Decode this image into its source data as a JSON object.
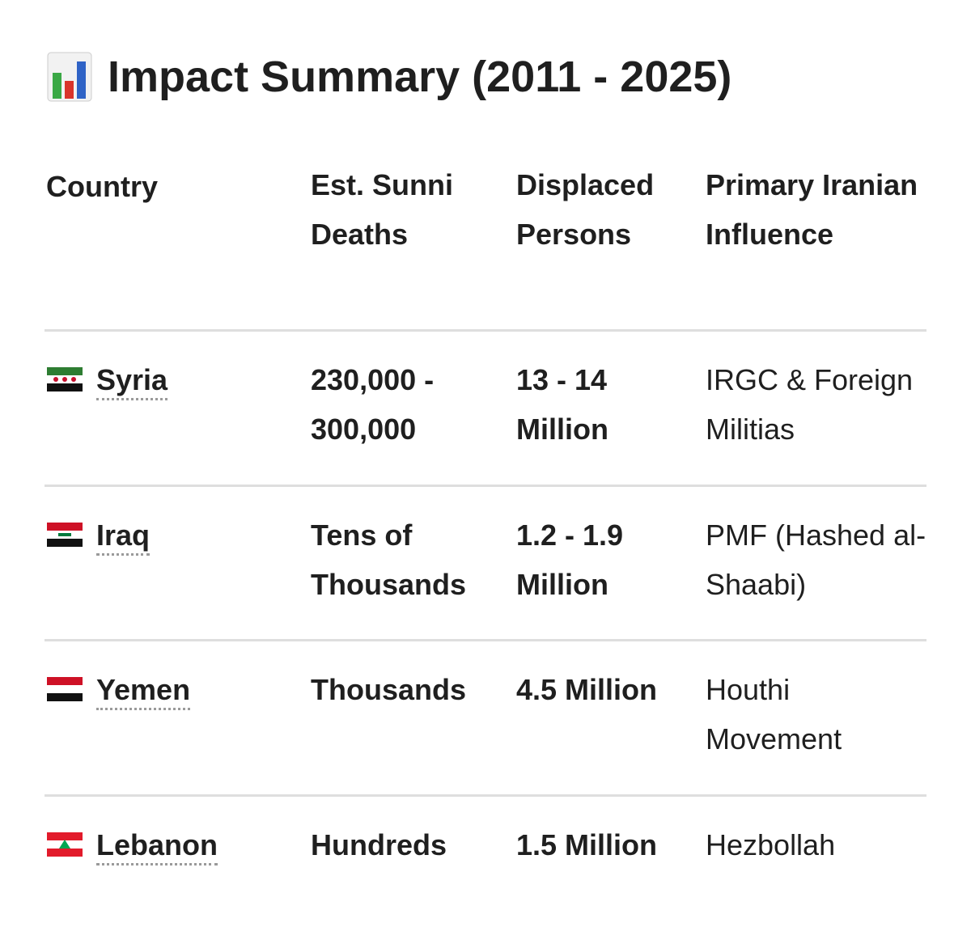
{
  "header": {
    "title": "Impact Summary (2011 - 2025)"
  },
  "table": {
    "columns": [
      "Country",
      "Est. Sunni Deaths",
      "Displaced Persons",
      "Primary Iranian Influence"
    ],
    "rows": [
      [
        "Syria",
        "230,000 - 300,000",
        "13 - 14 Million",
        "IRGC & Foreign Militias"
      ],
      [
        "Iraq",
        "Tens of Thousands",
        "1.2 - 1.9 Million",
        "PMF (Hashed al-Shaabi)"
      ],
      [
        "Yemen",
        "Thousands",
        "4.5 Million",
        "Houthi Movement"
      ],
      [
        "Lebanon",
        "Hundreds",
        "1.5 Million",
        "Hezbollah"
      ]
    ]
  }
}
